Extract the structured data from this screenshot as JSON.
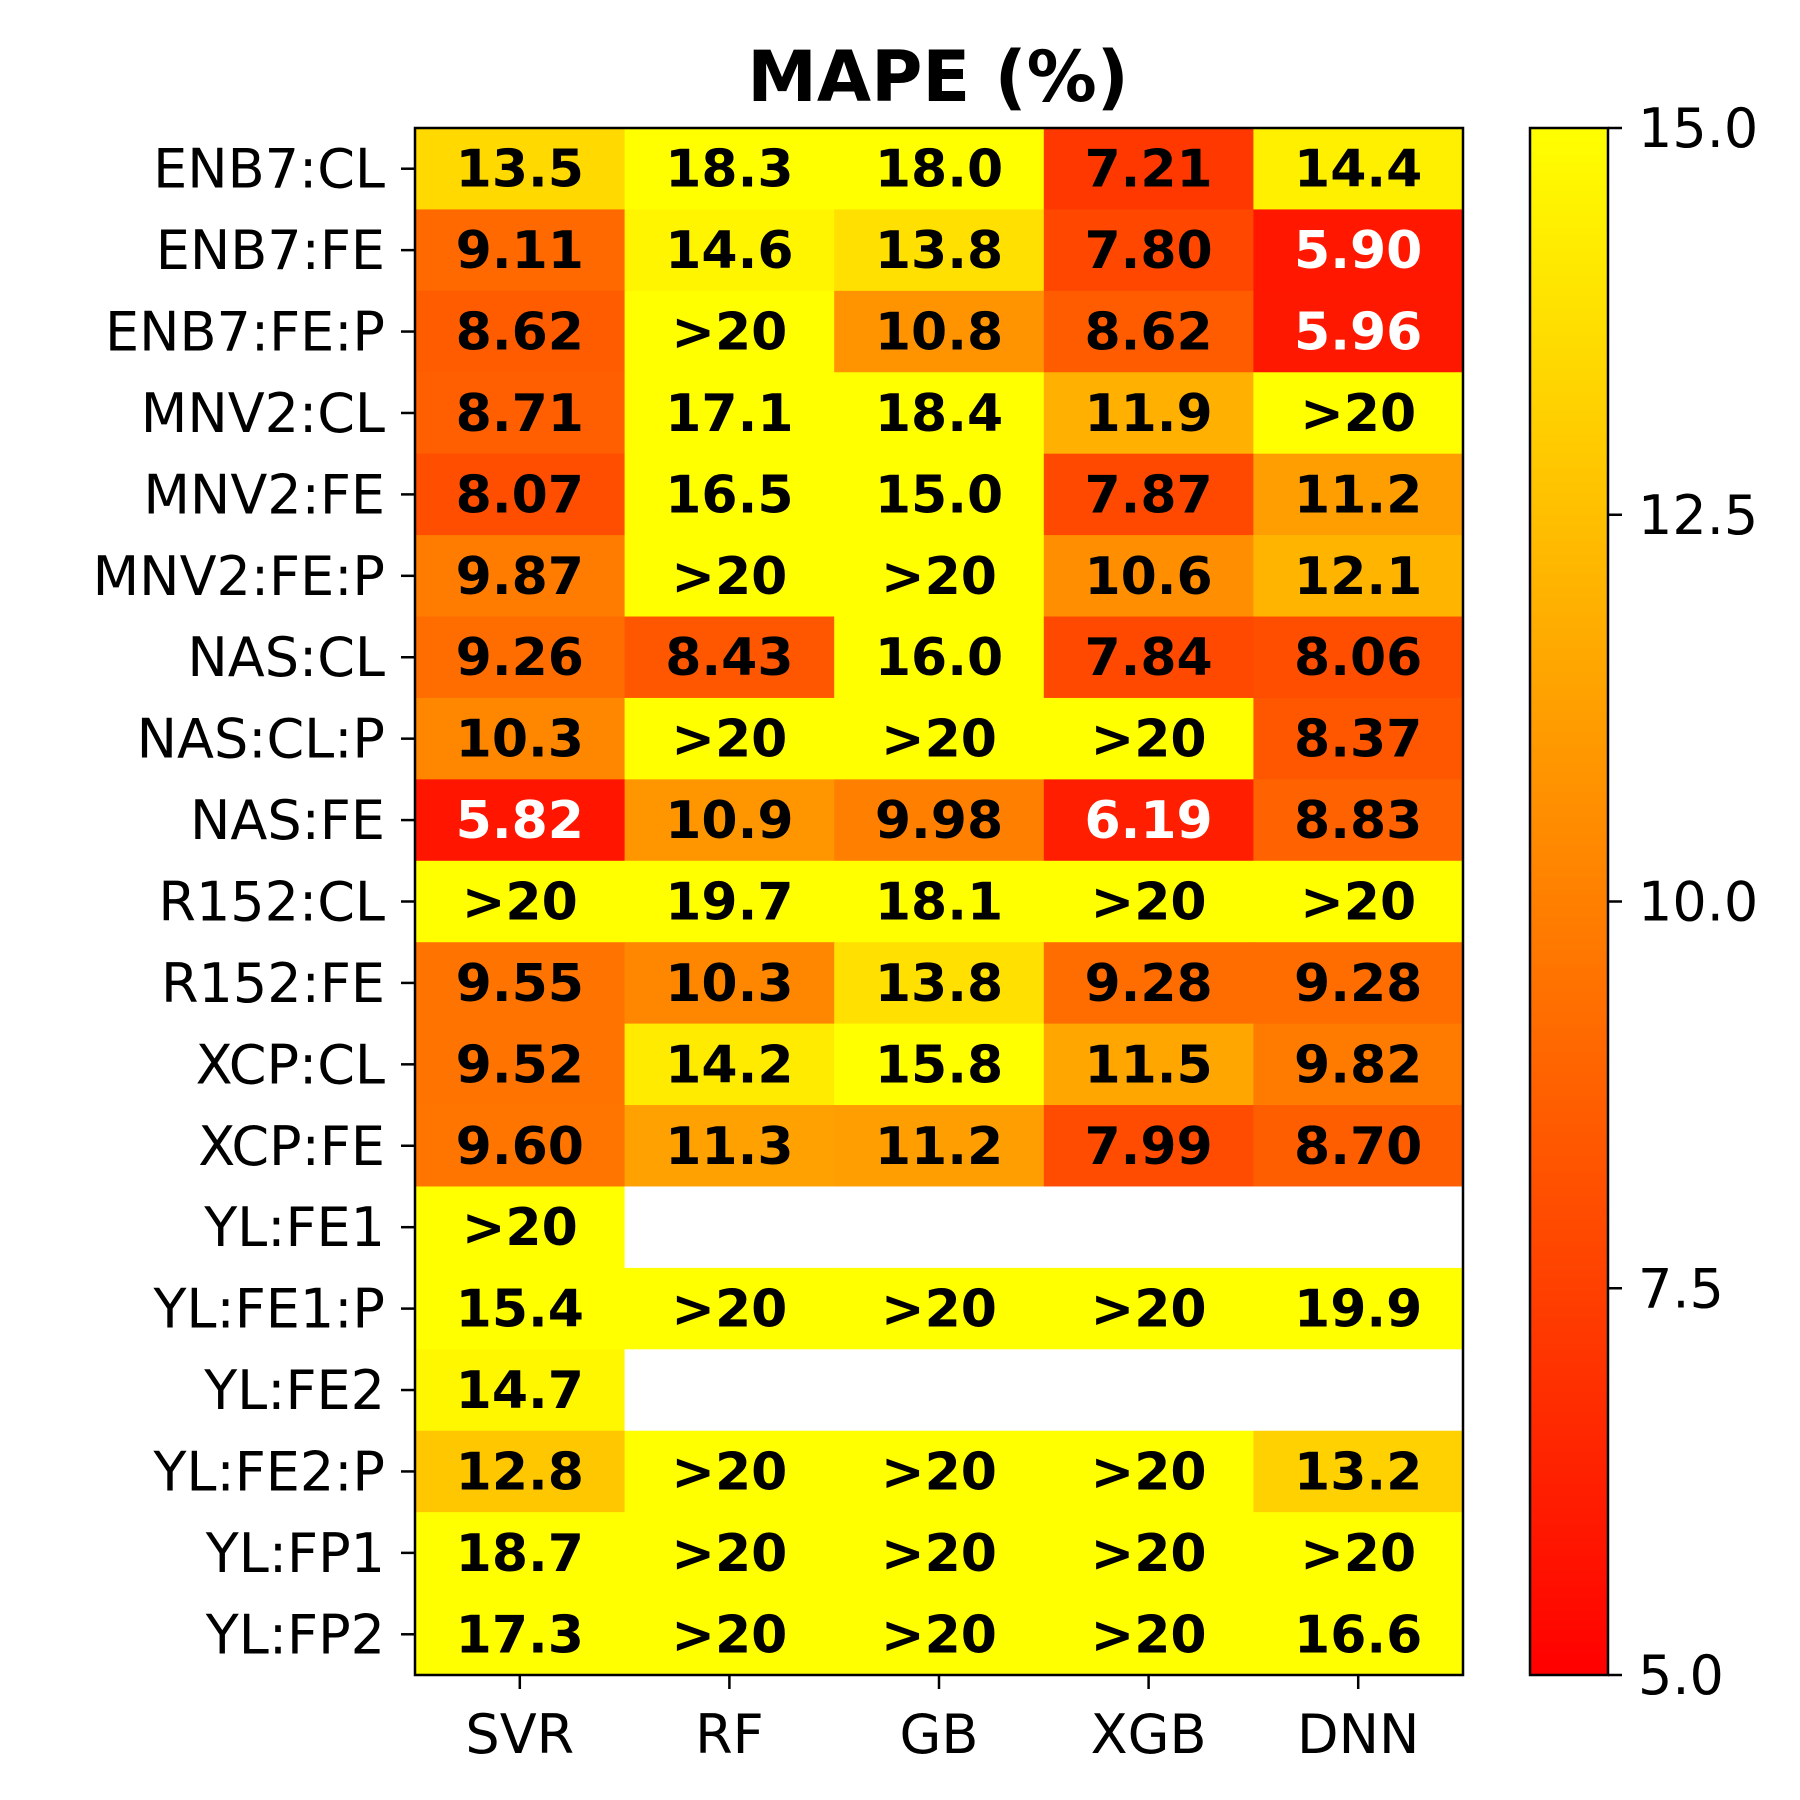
{
  "chart_data": {
    "type": "heatmap",
    "title": "MAPE (%)",
    "x_categories": [
      "SVR",
      "RF",
      "GB",
      "XGB",
      "DNN"
    ],
    "y_categories": [
      "ENB7:CL",
      "ENB7:FE",
      "ENB7:FE:P",
      "MNV2:CL",
      "MNV2:FE",
      "MNV2:FE:P",
      "NAS:CL",
      "NAS:CL:P",
      "NAS:FE",
      "R152:CL",
      "R152:FE",
      "XCP:CL",
      "XCP:FE",
      "YL:FE1",
      "YL:FE1:P",
      "YL:FE2",
      "YL:FE2:P",
      "YL:FP1",
      "YL:FP2"
    ],
    "values": [
      [
        13.5,
        18.3,
        18.0,
        7.21,
        14.4
      ],
      [
        9.11,
        14.6,
        13.8,
        7.8,
        5.9
      ],
      [
        8.62,
        ">20",
        10.8,
        8.62,
        5.96
      ],
      [
        8.71,
        17.1,
        18.4,
        11.9,
        ">20"
      ],
      [
        8.07,
        16.5,
        15.0,
        7.87,
        11.2
      ],
      [
        9.87,
        ">20",
        ">20",
        10.6,
        12.1
      ],
      [
        9.26,
        8.43,
        16.0,
        7.84,
        8.06
      ],
      [
        10.3,
        ">20",
        ">20",
        ">20",
        8.37
      ],
      [
        5.82,
        10.9,
        9.98,
        6.19,
        8.83
      ],
      [
        ">20",
        19.7,
        18.1,
        ">20",
        ">20"
      ],
      [
        9.55,
        10.3,
        13.8,
        9.28,
        9.28
      ],
      [
        9.52,
        14.2,
        15.8,
        11.5,
        9.82
      ],
      [
        9.6,
        11.3,
        11.2,
        7.99,
        8.7
      ],
      [
        ">20",
        null,
        null,
        null,
        null
      ],
      [
        15.4,
        ">20",
        ">20",
        ">20",
        19.9
      ],
      [
        14.7,
        null,
        null,
        null,
        null
      ],
      [
        12.8,
        ">20",
        ">20",
        ">20",
        13.2
      ],
      [
        18.7,
        ">20",
        ">20",
        ">20",
        ">20"
      ],
      [
        17.3,
        ">20",
        ">20",
        ">20",
        16.6
      ]
    ],
    "labels": [
      [
        "13.5",
        "18.3",
        "18.0",
        "7.21",
        "14.4"
      ],
      [
        "9.11",
        "14.6",
        "13.8",
        "7.80",
        "5.90"
      ],
      [
        "8.62",
        ">20",
        "10.8",
        "8.62",
        "5.96"
      ],
      [
        "8.71",
        "17.1",
        "18.4",
        "11.9",
        ">20"
      ],
      [
        "8.07",
        "16.5",
        "15.0",
        "7.87",
        "11.2"
      ],
      [
        "9.87",
        ">20",
        ">20",
        "10.6",
        "12.1"
      ],
      [
        "9.26",
        "8.43",
        "16.0",
        "7.84",
        "8.06"
      ],
      [
        "10.3",
        ">20",
        ">20",
        ">20",
        "8.37"
      ],
      [
        "5.82",
        "10.9",
        "9.98",
        "6.19",
        "8.83"
      ],
      [
        ">20",
        "19.7",
        "18.1",
        ">20",
        ">20"
      ],
      [
        "9.55",
        "10.3",
        "13.8",
        "9.28",
        "9.28"
      ],
      [
        "9.52",
        "14.2",
        "15.8",
        "11.5",
        "9.82"
      ],
      [
        "9.60",
        "11.3",
        "11.2",
        "7.99",
        "8.70"
      ],
      [
        ">20",
        "",
        "",
        "",
        ""
      ],
      [
        "15.4",
        ">20",
        ">20",
        ">20",
        "19.9"
      ],
      [
        "14.7",
        "",
        "",
        "",
        ""
      ],
      [
        "12.8",
        ">20",
        ">20",
        ">20",
        "13.2"
      ],
      [
        "18.7",
        ">20",
        ">20",
        ">20",
        ">20"
      ],
      [
        "17.3",
        ">20",
        ">20",
        ">20",
        "16.6"
      ]
    ],
    "colorbar": {
      "range": [
        5.0,
        15.0
      ],
      "ticks": [
        5.0,
        7.5,
        10.0,
        12.5,
        15.0
      ],
      "tick_labels": [
        "5.0",
        "7.5",
        "10.0",
        "12.5",
        "15.0"
      ],
      "colormap": "autumn",
      "low_color": "#ff0000",
      "high_color": "#ffff00"
    },
    "empty_cell_color": "#ffffff",
    "text_color_dark": "#000000",
    "text_color_light": "#ffffff",
    "light_text_below": 6.5,
    "grid": false
  }
}
